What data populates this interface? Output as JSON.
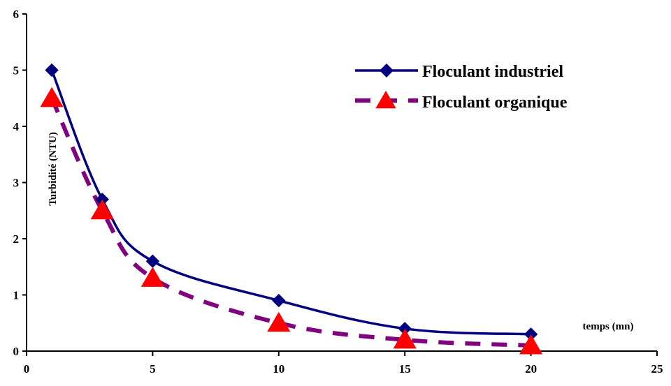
{
  "chart_data": {
    "type": "line",
    "title": "",
    "xlabel": "temps (mn)",
    "ylabel": "Turbidité (NTU)",
    "xlim": [
      0,
      25
    ],
    "ylim": [
      0,
      6
    ],
    "xticks": [
      0,
      5,
      10,
      15,
      20,
      25
    ],
    "yticks": [
      0,
      1,
      2,
      3,
      4,
      5,
      6
    ],
    "xtick_labels": [
      "0",
      "5",
      "10",
      "15",
      "20",
      "25"
    ],
    "ytick_labels": [
      "0",
      "1",
      "2",
      "3",
      "4",
      "5",
      "6"
    ],
    "grid": false,
    "legend_position": "top-right",
    "series": [
      {
        "name": "Floculant industriel",
        "color": "#000080",
        "line_style": "solid",
        "marker": "diamond",
        "x": [
          1,
          3,
          5,
          10,
          15,
          20
        ],
        "y": [
          5,
          2.7,
          1.6,
          0.9,
          0.4,
          0.3
        ]
      },
      {
        "name": "Floculant organique",
        "color": "#800080",
        "marker_color": "#ff0000",
        "line_style": "dashed",
        "marker": "triangle",
        "x": [
          1,
          3,
          5,
          10,
          15,
          20
        ],
        "y": [
          4.5,
          2.5,
          1.3,
          0.5,
          0.2,
          0.1
        ]
      }
    ]
  }
}
